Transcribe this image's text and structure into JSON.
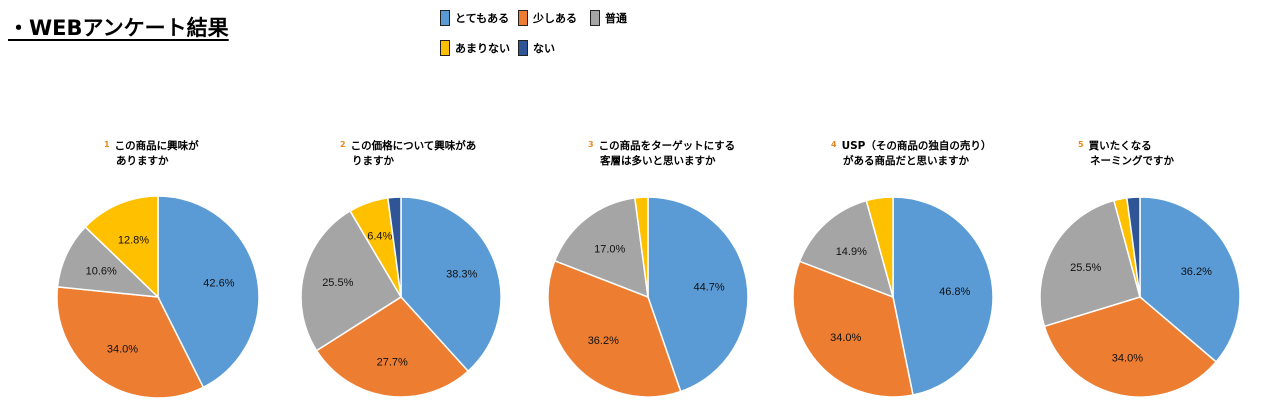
{
  "page_title": "・WEBアンケート結果",
  "legend": [
    {
      "label": "とてもある",
      "color": "#5b9bd5"
    },
    {
      "label": "少しある",
      "color": "#ed7d31"
    },
    {
      "label": "普通",
      "color": "#a5a5a5"
    },
    {
      "label": "あまりない",
      "color": "#ffc000"
    },
    {
      "label": "ない",
      "color": "#2f5597"
    }
  ],
  "chart_data": [
    {
      "type": "pie",
      "number": "1",
      "title_lines": [
        "この商品に興味が",
        "ありますか"
      ],
      "categories": [
        "とてもある",
        "少しある",
        "普通",
        "あまりない",
        "ない"
      ],
      "values": [
        42.6,
        34.0,
        10.6,
        12.8,
        0
      ],
      "labels": [
        "42.6%",
        "34.0%",
        "10.6%",
        "12.8%",
        ""
      ]
    },
    {
      "type": "pie",
      "number": "2",
      "title_lines": [
        "この価格について興味があ",
        "りますか"
      ],
      "categories": [
        "とてもある",
        "少しある",
        "普通",
        "あまりない",
        "ない"
      ],
      "values": [
        38.3,
        27.7,
        25.5,
        6.4,
        2.1
      ],
      "labels": [
        "38.3%",
        "27.7%",
        "25.5%",
        "6.4%",
        ""
      ]
    },
    {
      "type": "pie",
      "number": "3",
      "title_lines": [
        "この商品をターゲットにする",
        "客層は多いと思いますか"
      ],
      "categories": [
        "とてもある",
        "少しある",
        "普通",
        "あまりない",
        "ない"
      ],
      "values": [
        44.7,
        36.2,
        17.0,
        2.1,
        0
      ],
      "labels": [
        "44.7%",
        "36.2%",
        "17.0%",
        "",
        ""
      ]
    },
    {
      "type": "pie",
      "number": "4",
      "title_lines": [
        "USP（その商品の独自の売り）",
        "がある商品だと思いますか"
      ],
      "categories": [
        "とてもある",
        "少しある",
        "普通",
        "あまりない",
        "ない"
      ],
      "values": [
        46.8,
        34.0,
        14.9,
        4.3,
        0
      ],
      "labels": [
        "46.8%",
        "34.0%",
        "14.9%",
        "",
        ""
      ]
    },
    {
      "type": "pie",
      "number": "5",
      "title_lines": [
        "買いたくなる",
        "ネーミングですか"
      ],
      "categories": [
        "とてもある",
        "少しある",
        "普通",
        "あまりない",
        "ない"
      ],
      "values": [
        36.2,
        34.0,
        25.5,
        2.1,
        2.1
      ],
      "labels": [
        "36.2%",
        "34.0%",
        "25.5%",
        "",
        ""
      ]
    }
  ]
}
